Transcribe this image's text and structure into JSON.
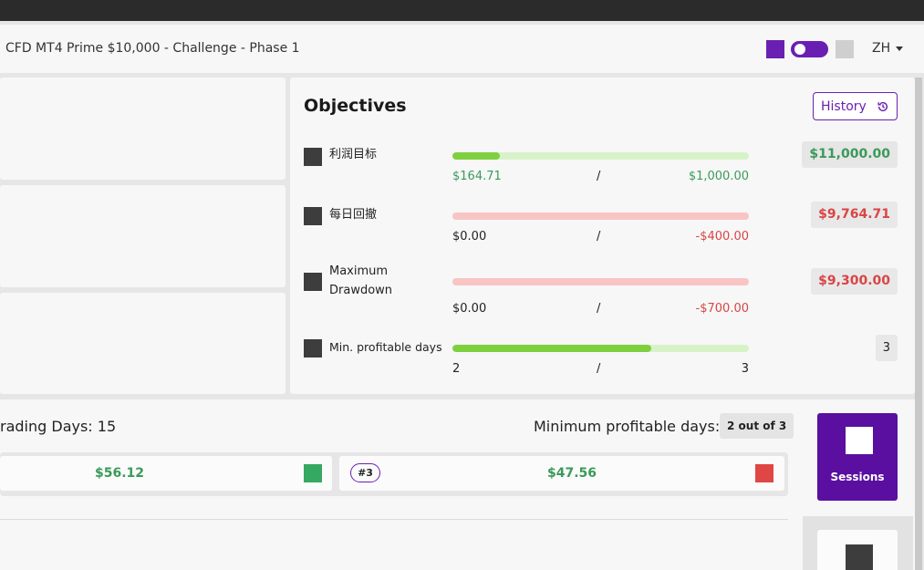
{
  "header": {
    "title": "CFD MT4 Prime $10,000 - Challenge - Phase 1",
    "language": "ZH",
    "accent_color": "#6a1fb3"
  },
  "objectives": {
    "title": "Objectives",
    "history_label": "History",
    "history_icon": "history-icon",
    "rows": [
      {
        "label": "利润目标",
        "progress": 0.16,
        "current": "$164.71",
        "separator": "/",
        "target": "$1,000.00",
        "badge": "$11,000.00",
        "status": "green"
      },
      {
        "label": "每日回撤",
        "progress": 0.0,
        "current": "$0.00",
        "separator": "/",
        "target": "-$400.00",
        "badge": "$9,764.71",
        "status": "red"
      },
      {
        "label": "Maximum Drawdown",
        "progress": 0.0,
        "current": "$0.00",
        "separator": "/",
        "target": "-$700.00",
        "badge": "$9,300.00",
        "status": "red"
      },
      {
        "label": "Min. profitable days",
        "progress": 0.67,
        "current": "2",
        "separator": "/",
        "target": "3",
        "badge": "3",
        "status": "green"
      }
    ]
  },
  "trading": {
    "trading_days_label": "rading Days:",
    "trading_days_value": "15",
    "min_profitable_label": "Minimum profitable days:",
    "min_profitable_badge": "2 out of 3",
    "days": [
      {
        "value": "$56.12",
        "status_color": "#35a861"
      },
      {
        "number": "#3",
        "value": "$47.56",
        "status_color": "#e04646"
      }
    ]
  },
  "sessions": {
    "label": "Sessions"
  }
}
